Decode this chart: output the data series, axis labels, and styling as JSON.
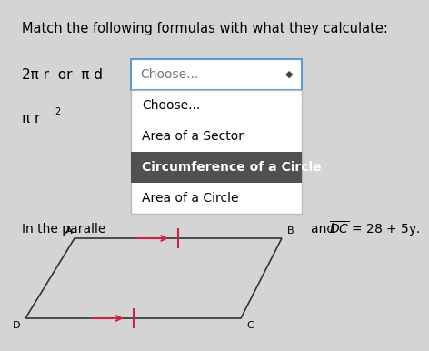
{
  "title": "Match the following formulas with what they calculate:",
  "bg_color": "#d4d4d4",
  "formula1": "2π r  or  π d",
  "formula2": "π r",
  "formula2_sup": "2",
  "dropdown1_text": "Choose...",
  "dropdown_border_color": "#5b9bd5",
  "dropdown_bg": "#ffffff",
  "dropdown_items": [
    "Choose...",
    "Area of a Sector",
    "Circumference of a Circle",
    "Area of a Circle"
  ],
  "highlighted_item": "Circumference of a Circle",
  "highlighted_bg": "#505050",
  "highlighted_fg": "#ffffff",
  "parallelogram_text": "In the paralle",
  "dc_text": "and  ",
  "dc_formula": "DC = 28 + 5y.",
  "font_size_title": 10.5,
  "font_size_formula": 11,
  "font_size_dropdown": 10,
  "font_size_small": 8,
  "arrow_color": "#cc2244",
  "tick_color": "#cc2244"
}
